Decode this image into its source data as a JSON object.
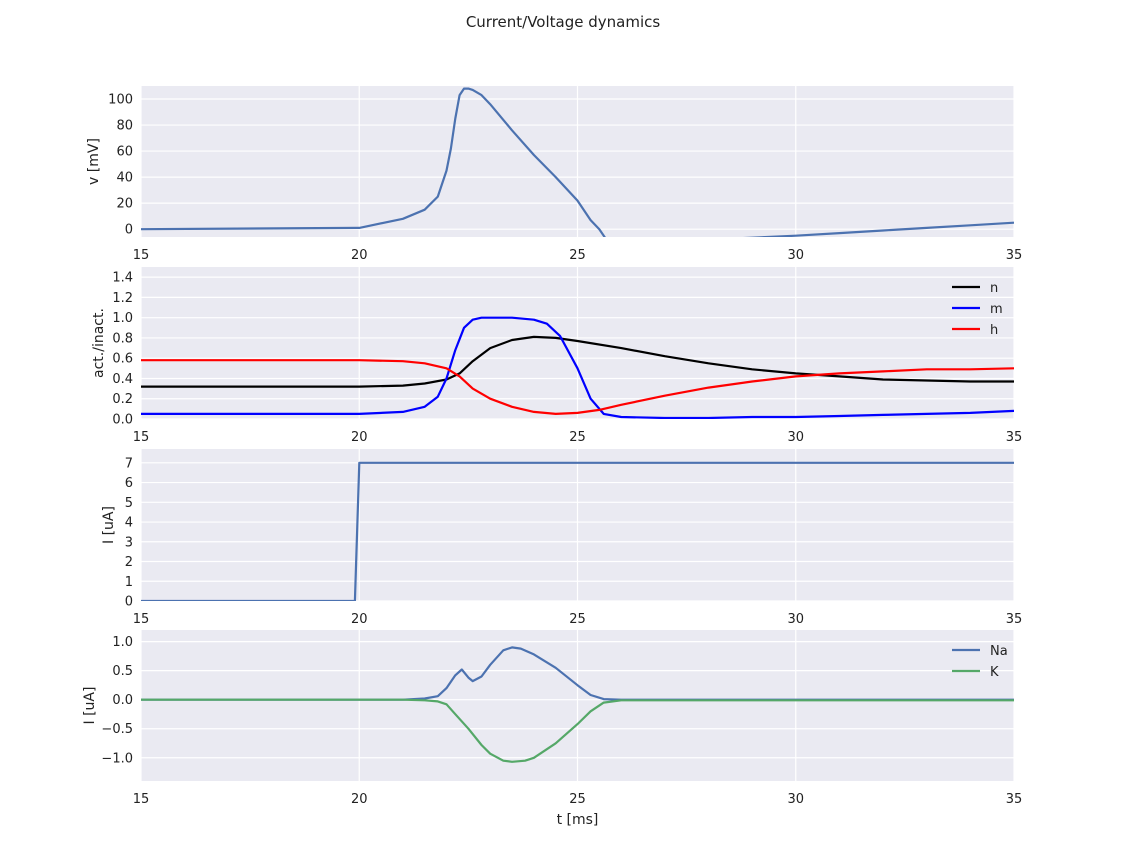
{
  "title": "Current/Voltage dynamics",
  "chart_data": [
    {
      "type": "line",
      "xlabel": "",
      "ylabel": "v [mV]",
      "xlim": [
        15,
        35
      ],
      "ylim": [
        -6,
        110
      ],
      "xticks": [
        15,
        20,
        25,
        30,
        35
      ],
      "yticks": [
        0,
        20,
        40,
        60,
        80,
        100
      ],
      "legend": false,
      "grid": true,
      "series": [
        {
          "color": "#4c72b0",
          "x": [
            15,
            20,
            21,
            21.5,
            21.8,
            22.0,
            22.1,
            22.2,
            22.3,
            22.4,
            22.5,
            22.6,
            22.8,
            23.0,
            23.5,
            24.0,
            24.5,
            25.0,
            25.3,
            25.5,
            25.7,
            26.0,
            27,
            28,
            29,
            30,
            31,
            32,
            33,
            34,
            35
          ],
          "y": [
            0,
            1,
            8,
            15,
            25,
            45,
            62,
            85,
            103,
            108,
            108,
            107,
            103,
            96,
            76,
            57,
            40,
            22,
            7,
            0,
            -10,
            -10.5,
            -9.5,
            -8,
            -6.5,
            -5,
            -3,
            -1,
            1,
            3,
            5
          ]
        }
      ]
    },
    {
      "type": "line",
      "xlabel": "",
      "ylabel": "act./inact.",
      "xlim": [
        15,
        35
      ],
      "ylim": [
        0,
        1.5
      ],
      "xticks": [
        15,
        20,
        25,
        30,
        35
      ],
      "yticks": [
        0.0,
        0.2,
        0.4,
        0.6,
        0.8,
        1.0,
        1.2,
        1.4
      ],
      "legend": "top-right",
      "grid": true,
      "series": [
        {
          "name": "n",
          "color": "#000000",
          "x": [
            15,
            20,
            21,
            21.5,
            22,
            22.3,
            22.6,
            23,
            23.5,
            24,
            24.5,
            25,
            26,
            27,
            28,
            29,
            30,
            31,
            32,
            33,
            34,
            35
          ],
          "y": [
            0.32,
            0.32,
            0.33,
            0.35,
            0.39,
            0.45,
            0.57,
            0.7,
            0.78,
            0.81,
            0.8,
            0.77,
            0.7,
            0.62,
            0.55,
            0.49,
            0.45,
            0.42,
            0.39,
            0.38,
            0.37,
            0.37
          ]
        },
        {
          "name": "m",
          "color": "#0000ff",
          "x": [
            15,
            20,
            21,
            21.5,
            21.8,
            22.0,
            22.2,
            22.4,
            22.6,
            22.8,
            23.0,
            23.5,
            24.0,
            24.3,
            24.6,
            25.0,
            25.3,
            25.6,
            26.0,
            27,
            28,
            29,
            30,
            31,
            32,
            33,
            34,
            35
          ],
          "y": [
            0.05,
            0.05,
            0.07,
            0.12,
            0.22,
            0.4,
            0.68,
            0.9,
            0.98,
            1.0,
            1.0,
            1.0,
            0.98,
            0.94,
            0.82,
            0.5,
            0.2,
            0.05,
            0.02,
            0.01,
            0.01,
            0.02,
            0.02,
            0.03,
            0.04,
            0.05,
            0.06,
            0.08
          ]
        },
        {
          "name": "h",
          "color": "#ff0000",
          "x": [
            15,
            20,
            21,
            21.5,
            22,
            22.3,
            22.6,
            23,
            23.5,
            24,
            24.5,
            25,
            25.5,
            26,
            27,
            28,
            29,
            30,
            31,
            32,
            33,
            34,
            35
          ],
          "y": [
            0.58,
            0.58,
            0.57,
            0.55,
            0.5,
            0.42,
            0.3,
            0.2,
            0.12,
            0.07,
            0.05,
            0.06,
            0.09,
            0.14,
            0.23,
            0.31,
            0.37,
            0.42,
            0.45,
            0.47,
            0.49,
            0.49,
            0.5
          ]
        }
      ]
    },
    {
      "type": "line",
      "xlabel": "",
      "ylabel": "I [uA]",
      "xlim": [
        15,
        35
      ],
      "ylim": [
        0,
        7.7
      ],
      "xticks": [
        15,
        20,
        25,
        30,
        35
      ],
      "yticks": [
        0,
        1,
        2,
        3,
        4,
        5,
        6,
        7
      ],
      "legend": false,
      "grid": true,
      "series": [
        {
          "color": "#4c72b0",
          "x": [
            15,
            19.9,
            20.0,
            35
          ],
          "y": [
            0,
            0,
            7,
            7
          ]
        }
      ]
    },
    {
      "type": "line",
      "xlabel": "t [ms]",
      "ylabel": "I [uA]",
      "xlim": [
        15,
        35
      ],
      "ylim": [
        -1.4,
        1.2
      ],
      "xticks": [
        15,
        20,
        25,
        30,
        35
      ],
      "yticks": [
        -1.0,
        -0.5,
        0.0,
        0.5,
        1.0
      ],
      "ytick_labels": [
        "−1.0",
        "−0.5",
        "0.0",
        "0.5",
        "1.0"
      ],
      "legend": "top-right",
      "grid": true,
      "series": [
        {
          "name": "Na",
          "color": "#4c72b0",
          "x": [
            15,
            21,
            21.5,
            21.8,
            22.0,
            22.2,
            22.35,
            22.5,
            22.6,
            22.8,
            23.0,
            23.3,
            23.5,
            23.7,
            24.0,
            24.5,
            25.0,
            25.3,
            25.6,
            26,
            35
          ],
          "y": [
            0,
            0,
            0.02,
            0.06,
            0.2,
            0.42,
            0.52,
            0.38,
            0.32,
            0.4,
            0.6,
            0.85,
            0.9,
            0.88,
            0.78,
            0.55,
            0.25,
            0.08,
            0.01,
            0,
            0
          ]
        },
        {
          "name": "K",
          "color": "#55a868",
          "x": [
            15,
            21,
            21.5,
            21.8,
            22.0,
            22.2,
            22.5,
            22.8,
            23.0,
            23.3,
            23.5,
            23.8,
            24.0,
            24.5,
            25.0,
            25.3,
            25.6,
            26,
            35
          ],
          "y": [
            0,
            0,
            -0.01,
            -0.03,
            -0.08,
            -0.25,
            -0.5,
            -0.78,
            -0.93,
            -1.05,
            -1.07,
            -1.05,
            -1.0,
            -0.75,
            -0.42,
            -0.2,
            -0.05,
            -0.01,
            -0.01
          ]
        }
      ]
    }
  ]
}
